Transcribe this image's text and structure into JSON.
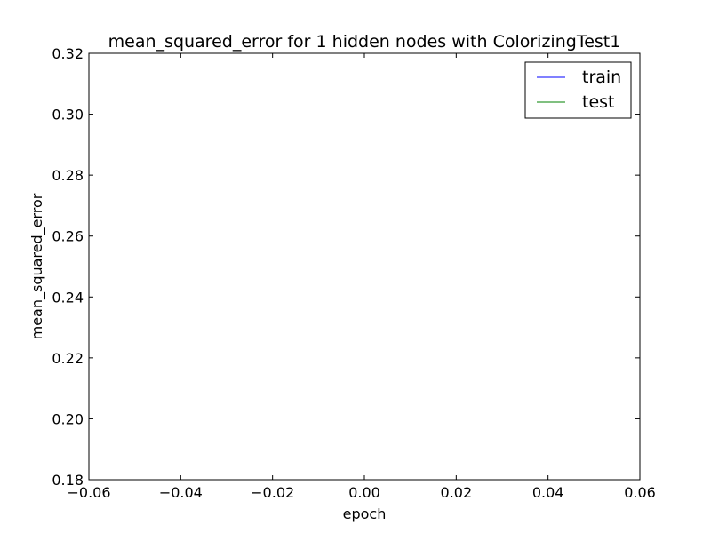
{
  "chart_data": {
    "type": "line",
    "title": "mean_squared_error for 1 hidden nodes with ColorizingTest1",
    "xlabel": "epoch",
    "ylabel": "mean_squared_error",
    "xlim": [
      -0.06,
      0.06
    ],
    "ylim": [
      0.18,
      0.32
    ],
    "xticks": [
      -0.06,
      -0.04,
      -0.02,
      0.0,
      0.02,
      0.04,
      0.06
    ],
    "xtick_labels": [
      "−0.06",
      "−0.04",
      "−0.02",
      "0.00",
      "0.02",
      "0.04",
      "0.06"
    ],
    "yticks": [
      0.18,
      0.2,
      0.22,
      0.24,
      0.26,
      0.28,
      0.3,
      0.32
    ],
    "ytick_labels": [
      "0.18",
      "0.20",
      "0.22",
      "0.24",
      "0.26",
      "0.28",
      "0.30",
      "0.32"
    ],
    "grid": false,
    "legend_position": "top-right",
    "series": [
      {
        "name": "train",
        "color": "#0000ff",
        "x": [],
        "y": []
      },
      {
        "name": "test",
        "color": "#008000",
        "x": [],
        "y": []
      }
    ]
  }
}
